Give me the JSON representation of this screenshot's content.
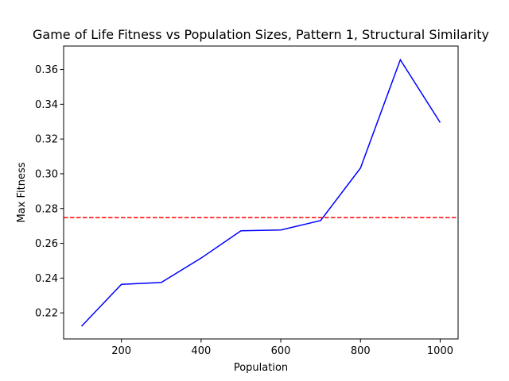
{
  "chart_data": {
    "type": "line",
    "title": "Game of Life Fitness vs Population Sizes, Pattern 1, Structural Similarity",
    "xlabel": "Population",
    "ylabel": "Max Fitness",
    "xlim": [
      55,
      1045
    ],
    "ylim": [
      0.205,
      0.3735
    ],
    "x_ticks": [
      200,
      400,
      600,
      800,
      1000
    ],
    "y_ticks": [
      0.22,
      0.24,
      0.26,
      0.28,
      0.3,
      0.32,
      0.34,
      0.36
    ],
    "y_tick_labels": [
      "0.22",
      "0.24",
      "0.26",
      "0.28",
      "0.30",
      "0.32",
      "0.34",
      "0.36"
    ],
    "grid": false,
    "series": [
      {
        "color": "#0000ff",
        "x": [
          100,
          200,
          300,
          400,
          500,
          600,
          700,
          800,
          900,
          1000
        ],
        "values": [
          0.2123,
          0.2364,
          0.2375,
          0.2515,
          0.2672,
          0.2677,
          0.2731,
          0.3033,
          0.3656,
          0.3295
        ]
      }
    ],
    "reference_lines": [
      {
        "orientation": "horizontal",
        "value": 0.2748,
        "color": "#ff0000",
        "style": "dashed"
      }
    ]
  }
}
